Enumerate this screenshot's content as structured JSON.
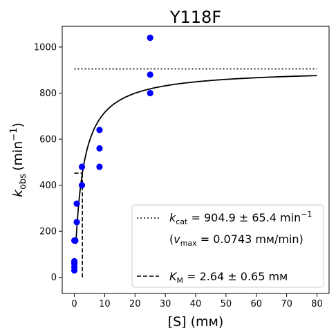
{
  "chart_data": {
    "type": "scatter",
    "title": "Y118F",
    "xlabel": "[S] (mм)",
    "ylabel_main": "k",
    "ylabel_sub": "obs",
    "ylabel_unit": "(min",
    "ylabel_exp": "−1",
    "ylabel_close": ")",
    "xlim": [
      -4,
      84
    ],
    "ylim": [
      -70,
      1090
    ],
    "xticks": [
      0,
      10,
      20,
      30,
      40,
      50,
      60,
      70,
      80
    ],
    "yticks": [
      0,
      200,
      400,
      600,
      800,
      1000
    ],
    "points": {
      "color": "#0000ff",
      "x": [
        0,
        0,
        0,
        0,
        0,
        0.3,
        0.8,
        0.8,
        2.5,
        2.5,
        8.3,
        8.3,
        8.3,
        25,
        25,
        25
      ],
      "y": [
        30,
        45,
        60,
        70,
        160,
        160,
        240,
        320,
        480,
        400,
        640,
        560,
        480,
        1040,
        880,
        800
      ]
    },
    "fit": {
      "model": "michaelis-menten",
      "kcat": 904.9,
      "km": 2.64,
      "x_range": [
        0.5,
        80
      ],
      "color": "#000000"
    },
    "kcat_line": {
      "value": 904.9,
      "x_range": [
        0,
        80
      ],
      "style": "dotted"
    },
    "km_line": {
      "x": 2.64,
      "half_value": 452.45,
      "style": "dashed"
    },
    "legend": {
      "placement": "lower-right",
      "kcat_sym": "k",
      "kcat_sub": "cat",
      "kcat_text": " = 904.9 ± 65.4 min",
      "kcat_exp": "−1",
      "vmax_open": "(v",
      "vmax_sub": "max",
      "vmax_text": " = 0.0743 mм/min)",
      "km_sym": "K",
      "km_sub": "M",
      "km_text": " = 2.64 ± 0.65 mм"
    }
  }
}
